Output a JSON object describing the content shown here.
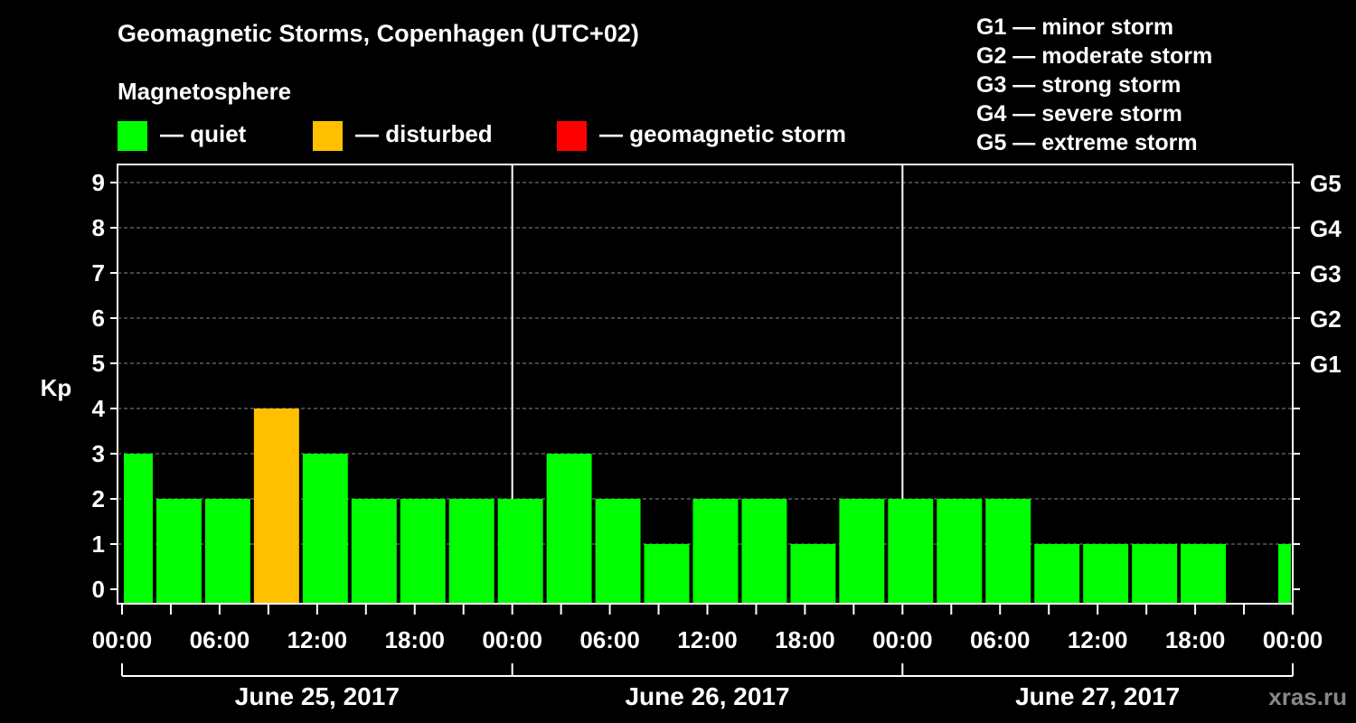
{
  "chart_data": {
    "type": "bar",
    "title": "Geomagnetic Storms, Copenhagen (UTC+02)",
    "magnetosphere_title": "Magnetosphere",
    "ylabel": "Kp",
    "ylim": [
      0,
      9
    ],
    "yticks": [
      "0",
      "1",
      "2",
      "3",
      "4",
      "5",
      "6",
      "7",
      "8",
      "9"
    ],
    "g_levels": [
      {
        "kp": 5,
        "label": "G1"
      },
      {
        "kp": 6,
        "label": "G2"
      },
      {
        "kp": 7,
        "label": "G3"
      },
      {
        "kp": 8,
        "label": "G4"
      },
      {
        "kp": 9,
        "label": "G5"
      }
    ],
    "status_legend": [
      {
        "label": "— quiet",
        "color": "#00ff00"
      },
      {
        "label": "— disturbed",
        "color": "#ffc000"
      },
      {
        "label": "— geomagnetic storm",
        "color": "#ff0000"
      }
    ],
    "g_scale_legend": [
      "G1 — minor storm",
      "G2 — moderate storm",
      "G3 — strong storm",
      "G4 — severe storm",
      "G5 — extreme storm"
    ],
    "x_tick_labels": [
      "00:00",
      "06:00",
      "12:00",
      "18:00",
      "00:00",
      "06:00",
      "12:00",
      "18:00",
      "00:00",
      "06:00",
      "12:00",
      "18:00",
      "00:00"
    ],
    "days": [
      "June 25, 2017",
      "June 26, 2017",
      "June 27, 2017"
    ],
    "bars": [
      {
        "start_hour": 0,
        "end_hour": 2,
        "kp": 3
      },
      {
        "start_hour": 2,
        "end_hour": 5,
        "kp": 2
      },
      {
        "start_hour": 5,
        "end_hour": 8,
        "kp": 2
      },
      {
        "start_hour": 8,
        "end_hour": 11,
        "kp": 4
      },
      {
        "start_hour": 11,
        "end_hour": 14,
        "kp": 3
      },
      {
        "start_hour": 14,
        "end_hour": 17,
        "kp": 2
      },
      {
        "start_hour": 17,
        "end_hour": 20,
        "kp": 2
      },
      {
        "start_hour": 20,
        "end_hour": 23,
        "kp": 2
      },
      {
        "start_hour": 23,
        "end_hour": 26,
        "kp": 2
      },
      {
        "start_hour": 26,
        "end_hour": 29,
        "kp": 3
      },
      {
        "start_hour": 29,
        "end_hour": 32,
        "kp": 2
      },
      {
        "start_hour": 32,
        "end_hour": 35,
        "kp": 1
      },
      {
        "start_hour": 35,
        "end_hour": 38,
        "kp": 2
      },
      {
        "start_hour": 38,
        "end_hour": 41,
        "kp": 2
      },
      {
        "start_hour": 41,
        "end_hour": 44,
        "kp": 1
      },
      {
        "start_hour": 44,
        "end_hour": 47,
        "kp": 2
      },
      {
        "start_hour": 47,
        "end_hour": 50,
        "kp": 2
      },
      {
        "start_hour": 50,
        "end_hour": 53,
        "kp": 2
      },
      {
        "start_hour": 53,
        "end_hour": 56,
        "kp": 2
      },
      {
        "start_hour": 56,
        "end_hour": 59,
        "kp": 1
      },
      {
        "start_hour": 59,
        "end_hour": 62,
        "kp": 1
      },
      {
        "start_hour": 62,
        "end_hour": 65,
        "kp": 1
      },
      {
        "start_hour": 65,
        "end_hour": 68,
        "kp": 1
      },
      {
        "start_hour": 71,
        "end_hour": 72,
        "kp": 1
      }
    ],
    "x_range_hours": [
      0,
      72
    ],
    "colors": {
      "quiet": "#00ff00",
      "disturbed": "#ffc000",
      "storm": "#ff0000",
      "grid": "#888888",
      "axis": "#ffffff"
    }
  },
  "watermark": "xras.ru"
}
